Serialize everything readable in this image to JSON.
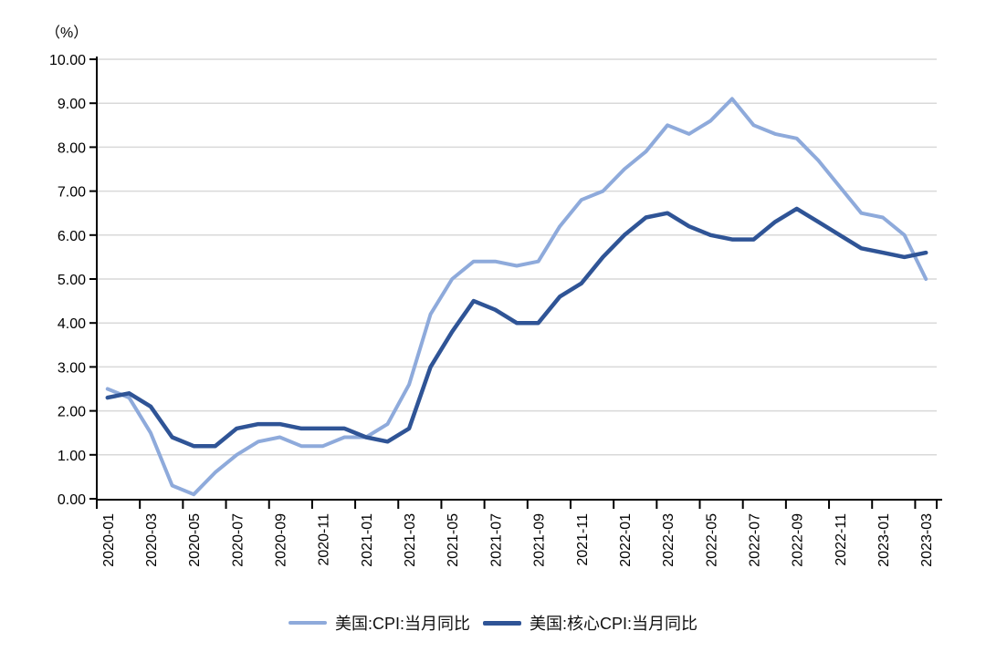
{
  "chart_data": {
    "type": "line",
    "title": "",
    "y_unit_label": "（%）",
    "xlabel": "",
    "ylabel": "(%)",
    "ylim": [
      0,
      10
    ],
    "y_ticks": [
      0,
      1,
      2,
      3,
      4,
      5,
      6,
      7,
      8,
      9,
      10
    ],
    "y_tick_labels": [
      "0.00",
      "1.00",
      "2.00",
      "3.00",
      "4.00",
      "5.00",
      "6.00",
      "7.00",
      "8.00",
      "9.00",
      "10.00"
    ],
    "x_tick_every": 2,
    "grid": "horizontal",
    "legend_position": "bottom",
    "x": [
      "2020-01",
      "2020-02",
      "2020-03",
      "2020-04",
      "2020-05",
      "2020-06",
      "2020-07",
      "2020-08",
      "2020-09",
      "2020-10",
      "2020-11",
      "2020-12",
      "2021-01",
      "2021-02",
      "2021-03",
      "2021-04",
      "2021-05",
      "2021-06",
      "2021-07",
      "2021-08",
      "2021-09",
      "2021-10",
      "2021-11",
      "2021-12",
      "2022-01",
      "2022-02",
      "2022-03",
      "2022-04",
      "2022-05",
      "2022-06",
      "2022-07",
      "2022-08",
      "2022-09",
      "2022-10",
      "2022-11",
      "2022-12",
      "2023-01",
      "2023-02",
      "2023-03"
    ],
    "x_tick_labels": [
      "2020-01",
      "2020-03",
      "2020-05",
      "2020-07",
      "2020-09",
      "2020-11",
      "2021-01",
      "2021-03",
      "2021-05",
      "2021-07",
      "2021-09",
      "2021-11",
      "2022-01",
      "2022-03",
      "2022-05",
      "2022-07",
      "2022-09",
      "2022-11",
      "2023-01",
      "2023-03"
    ],
    "series": [
      {
        "name": "美国:CPI:当月同比",
        "color": "#8EAADB",
        "line_width": 4,
        "values": [
          2.5,
          2.3,
          1.5,
          0.3,
          0.1,
          0.6,
          1.0,
          1.3,
          1.4,
          1.2,
          1.2,
          1.4,
          1.4,
          1.7,
          2.6,
          4.2,
          5.0,
          5.4,
          5.4,
          5.3,
          5.4,
          6.2,
          6.8,
          7.0,
          7.5,
          7.9,
          8.5,
          8.3,
          8.6,
          9.1,
          8.5,
          8.3,
          8.2,
          7.7,
          7.1,
          6.5,
          6.4,
          6.0,
          5.0
        ]
      },
      {
        "name": "美国:核心CPI:当月同比",
        "color": "#2F5496",
        "line_width": 4.5,
        "values": [
          2.3,
          2.4,
          2.1,
          1.4,
          1.2,
          1.2,
          1.6,
          1.7,
          1.7,
          1.6,
          1.6,
          1.6,
          1.4,
          1.3,
          1.6,
          3.0,
          3.8,
          4.5,
          4.3,
          4.0,
          4.0,
          4.6,
          4.9,
          5.5,
          6.0,
          6.4,
          6.5,
          6.2,
          6.0,
          5.9,
          5.9,
          6.3,
          6.6,
          6.3,
          6.0,
          5.7,
          5.6,
          5.5,
          5.6
        ]
      }
    ]
  },
  "colors": {
    "background": "#FFFFFF",
    "gridline": "#D9D9D9",
    "axis": "#000000",
    "tick_text": "#000000",
    "legend_text": "#111111"
  }
}
